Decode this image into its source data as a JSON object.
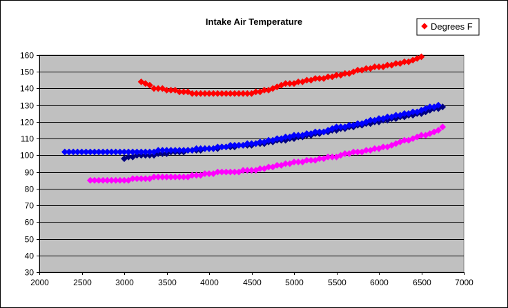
{
  "chart_data": {
    "type": "scatter",
    "title": "Intake Air Temperature",
    "xlabel": "",
    "ylabel": "",
    "xlim": [
      2000,
      7000
    ],
    "ylim": [
      30,
      160
    ],
    "xticks": [
      2000,
      2500,
      3000,
      3500,
      4000,
      4500,
      5000,
      5500,
      6000,
      6500,
      7000
    ],
    "yticks": [
      30,
      40,
      50,
      60,
      70,
      80,
      90,
      100,
      110,
      120,
      130,
      140,
      150,
      160
    ],
    "grid": "horizontal",
    "plot_background": "#c0c0c0",
    "legend": {
      "position": "top-right",
      "entries": [
        "Degrees F"
      ]
    },
    "series": [
      {
        "name": "Degrees F",
        "color": "#ff0000",
        "x": [
          3200,
          3250,
          3300,
          3350,
          3400,
          3450,
          3500,
          3550,
          3600,
          3650,
          3700,
          3750,
          3800,
          3850,
          3900,
          3950,
          4000,
          4050,
          4100,
          4150,
          4200,
          4250,
          4300,
          4350,
          4400,
          4450,
          4500,
          4550,
          4600,
          4650,
          4700,
          4750,
          4800,
          4850,
          4900,
          4950,
          5000,
          5050,
          5100,
          5150,
          5200,
          5250,
          5300,
          5350,
          5400,
          5450,
          5500,
          5550,
          5600,
          5650,
          5700,
          5750,
          5800,
          5850,
          5900,
          5950,
          6000,
          6050,
          6100,
          6150,
          6200,
          6250,
          6300,
          6350,
          6400,
          6450,
          6500
        ],
        "y": [
          144,
          143,
          142,
          140,
          140,
          140,
          139,
          139,
          139,
          138,
          138,
          138,
          137,
          137,
          137,
          137,
          137,
          137,
          137,
          137,
          137,
          137,
          137,
          137,
          137,
          137,
          137,
          138,
          138,
          139,
          139,
          140,
          141,
          142,
          143,
          143,
          143,
          144,
          144,
          145,
          145,
          146,
          146,
          146,
          147,
          147,
          148,
          148,
          149,
          149,
          150,
          151,
          151,
          152,
          152,
          153,
          153,
          153,
          154,
          154,
          155,
          155,
          156,
          156,
          157,
          158,
          159
        ]
      },
      {
        "color": "#000080",
        "x": [
          3000,
          3050,
          3100,
          3150,
          3200,
          3250,
          3300,
          3350,
          3400,
          3450,
          3500,
          3550,
          3600,
          3650,
          3700,
          3750,
          3800,
          3850,
          3900,
          3950,
          4000,
          4050,
          4100,
          4150,
          4200,
          4250,
          4300,
          4350,
          4400,
          4450,
          4500,
          4550,
          4600,
          4650,
          4700,
          4750,
          4800,
          4850,
          4900,
          4950,
          5000,
          5050,
          5100,
          5150,
          5200,
          5250,
          5300,
          5350,
          5400,
          5450,
          5500,
          5550,
          5600,
          5650,
          5700,
          5750,
          5800,
          5850,
          5900,
          5950,
          6000,
          6050,
          6100,
          6150,
          6200,
          6250,
          6300,
          6350,
          6400,
          6450,
          6500,
          6550,
          6600,
          6650,
          6700,
          6750
        ],
        "y": [
          98,
          99,
          99,
          100,
          100,
          100,
          100,
          100,
          101,
          101,
          101,
          102,
          102,
          102,
          102,
          103,
          103,
          103,
          103,
          104,
          104,
          104,
          104,
          105,
          105,
          105,
          105,
          106,
          106,
          106,
          106,
          107,
          107,
          107,
          108,
          108,
          109,
          109,
          109,
          110,
          110,
          111,
          111,
          112,
          112,
          113,
          113,
          114,
          114,
          115,
          115,
          116,
          116,
          117,
          117,
          118,
          118,
          119,
          119,
          120,
          120,
          121,
          121,
          122,
          122,
          123,
          123,
          124,
          124,
          125,
          125,
          126,
          127,
          128,
          128,
          129
        ]
      },
      {
        "color": "#0000ff",
        "x": [
          2300,
          2350,
          2400,
          2450,
          2500,
          2550,
          2600,
          2650,
          2700,
          2750,
          2800,
          2850,
          2900,
          2950,
          3000,
          3050,
          3100,
          3150,
          3200,
          3250,
          3300,
          3350,
          3400,
          3450,
          3500,
          3550,
          3600,
          3650,
          3700,
          3750,
          3800,
          3850,
          3900,
          3950,
          4000,
          4050,
          4100,
          4150,
          4200,
          4250,
          4300,
          4350,
          4400,
          4450,
          4500,
          4550,
          4600,
          4650,
          4700,
          4750,
          4800,
          4850,
          4900,
          4950,
          5000,
          5050,
          5100,
          5150,
          5200,
          5250,
          5300,
          5350,
          5400,
          5450,
          5500,
          5550,
          5600,
          5650,
          5700,
          5750,
          5800,
          5850,
          5900,
          5950,
          6000,
          6050,
          6100,
          6150,
          6200,
          6250,
          6300,
          6350,
          6400,
          6450,
          6500,
          6550,
          6600,
          6650,
          6700
        ],
        "y": [
          102,
          102,
          102,
          102,
          102,
          102,
          102,
          102,
          102,
          102,
          102,
          102,
          102,
          102,
          102,
          102,
          102,
          102,
          102,
          102,
          102,
          102,
          103,
          103,
          103,
          103,
          103,
          103,
          103,
          103,
          103,
          104,
          104,
          104,
          104,
          104,
          105,
          105,
          105,
          106,
          106,
          106,
          106,
          107,
          107,
          107,
          108,
          108,
          109,
          109,
          110,
          110,
          111,
          111,
          112,
          112,
          112,
          113,
          113,
          114,
          114,
          114,
          115,
          116,
          117,
          117,
          117,
          118,
          118,
          119,
          119,
          120,
          121,
          121,
          122,
          122,
          123,
          123,
          124,
          124,
          125,
          125,
          126,
          126,
          127,
          128,
          129,
          129,
          130
        ]
      },
      {
        "color": "#ff00ff",
        "x": [
          2600,
          2650,
          2700,
          2750,
          2800,
          2850,
          2900,
          2950,
          3000,
          3050,
          3100,
          3150,
          3200,
          3250,
          3300,
          3350,
          3400,
          3450,
          3500,
          3550,
          3600,
          3650,
          3700,
          3750,
          3800,
          3850,
          3900,
          3950,
          4000,
          4050,
          4100,
          4150,
          4200,
          4250,
          4300,
          4350,
          4400,
          4450,
          4500,
          4550,
          4600,
          4650,
          4700,
          4750,
          4800,
          4850,
          4900,
          4950,
          5000,
          5050,
          5100,
          5150,
          5200,
          5250,
          5300,
          5350,
          5400,
          5450,
          5500,
          5550,
          5600,
          5650,
          5700,
          5750,
          5800,
          5850,
          5900,
          5950,
          6000,
          6050,
          6100,
          6150,
          6200,
          6250,
          6300,
          6350,
          6400,
          6450,
          6500,
          6550,
          6600,
          6650,
          6700,
          6750
        ],
        "y": [
          85,
          85,
          85,
          85,
          85,
          85,
          85,
          85,
          85,
          85,
          86,
          86,
          86,
          86,
          86,
          87,
          87,
          87,
          87,
          87,
          87,
          87,
          87,
          87,
          88,
          88,
          88,
          89,
          89,
          89,
          90,
          90,
          90,
          90,
          90,
          90,
          91,
          91,
          91,
          91,
          92,
          92,
          93,
          93,
          94,
          94,
          95,
          95,
          96,
          96,
          96,
          97,
          97,
          97,
          98,
          98,
          99,
          99,
          99,
          100,
          101,
          101,
          102,
          102,
          102,
          103,
          103,
          104,
          104,
          105,
          105,
          106,
          107,
          108,
          109,
          109,
          110,
          111,
          112,
          112,
          113,
          114,
          115,
          117
        ]
      }
    ]
  }
}
